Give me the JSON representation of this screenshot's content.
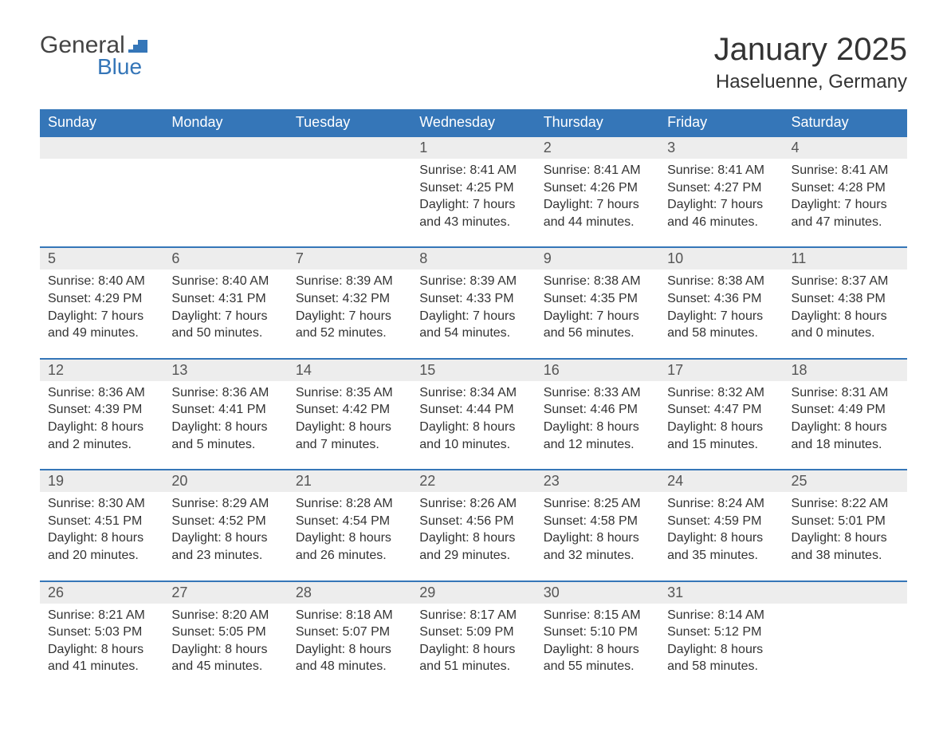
{
  "logo": {
    "general": "General",
    "blue": "Blue",
    "flag_color": "#3576b8"
  },
  "title": "January 2025",
  "location": "Haseluenne, Germany",
  "colors": {
    "header_bg": "#3576b8",
    "header_text": "#ffffff",
    "daynum_bg": "#ededed",
    "row_border": "#3576b8",
    "text": "#333333",
    "background": "#ffffff"
  },
  "day_names": [
    "Sunday",
    "Monday",
    "Tuesday",
    "Wednesday",
    "Thursday",
    "Friday",
    "Saturday"
  ],
  "weeks": [
    [
      null,
      null,
      null,
      {
        "n": "1",
        "sunrise": "8:41 AM",
        "sunset": "4:25 PM",
        "daylight": "7 hours and 43 minutes."
      },
      {
        "n": "2",
        "sunrise": "8:41 AM",
        "sunset": "4:26 PM",
        "daylight": "7 hours and 44 minutes."
      },
      {
        "n": "3",
        "sunrise": "8:41 AM",
        "sunset": "4:27 PM",
        "daylight": "7 hours and 46 minutes."
      },
      {
        "n": "4",
        "sunrise": "8:41 AM",
        "sunset": "4:28 PM",
        "daylight": "7 hours and 47 minutes."
      }
    ],
    [
      {
        "n": "5",
        "sunrise": "8:40 AM",
        "sunset": "4:29 PM",
        "daylight": "7 hours and 49 minutes."
      },
      {
        "n": "6",
        "sunrise": "8:40 AM",
        "sunset": "4:31 PM",
        "daylight": "7 hours and 50 minutes."
      },
      {
        "n": "7",
        "sunrise": "8:39 AM",
        "sunset": "4:32 PM",
        "daylight": "7 hours and 52 minutes."
      },
      {
        "n": "8",
        "sunrise": "8:39 AM",
        "sunset": "4:33 PM",
        "daylight": "7 hours and 54 minutes."
      },
      {
        "n": "9",
        "sunrise": "8:38 AM",
        "sunset": "4:35 PM",
        "daylight": "7 hours and 56 minutes."
      },
      {
        "n": "10",
        "sunrise": "8:38 AM",
        "sunset": "4:36 PM",
        "daylight": "7 hours and 58 minutes."
      },
      {
        "n": "11",
        "sunrise": "8:37 AM",
        "sunset": "4:38 PM",
        "daylight": "8 hours and 0 minutes."
      }
    ],
    [
      {
        "n": "12",
        "sunrise": "8:36 AM",
        "sunset": "4:39 PM",
        "daylight": "8 hours and 2 minutes."
      },
      {
        "n": "13",
        "sunrise": "8:36 AM",
        "sunset": "4:41 PM",
        "daylight": "8 hours and 5 minutes."
      },
      {
        "n": "14",
        "sunrise": "8:35 AM",
        "sunset": "4:42 PM",
        "daylight": "8 hours and 7 minutes."
      },
      {
        "n": "15",
        "sunrise": "8:34 AM",
        "sunset": "4:44 PM",
        "daylight": "8 hours and 10 minutes."
      },
      {
        "n": "16",
        "sunrise": "8:33 AM",
        "sunset": "4:46 PM",
        "daylight": "8 hours and 12 minutes."
      },
      {
        "n": "17",
        "sunrise": "8:32 AM",
        "sunset": "4:47 PM",
        "daylight": "8 hours and 15 minutes."
      },
      {
        "n": "18",
        "sunrise": "8:31 AM",
        "sunset": "4:49 PM",
        "daylight": "8 hours and 18 minutes."
      }
    ],
    [
      {
        "n": "19",
        "sunrise": "8:30 AM",
        "sunset": "4:51 PM",
        "daylight": "8 hours and 20 minutes."
      },
      {
        "n": "20",
        "sunrise": "8:29 AM",
        "sunset": "4:52 PM",
        "daylight": "8 hours and 23 minutes."
      },
      {
        "n": "21",
        "sunrise": "8:28 AM",
        "sunset": "4:54 PM",
        "daylight": "8 hours and 26 minutes."
      },
      {
        "n": "22",
        "sunrise": "8:26 AM",
        "sunset": "4:56 PM",
        "daylight": "8 hours and 29 minutes."
      },
      {
        "n": "23",
        "sunrise": "8:25 AM",
        "sunset": "4:58 PM",
        "daylight": "8 hours and 32 minutes."
      },
      {
        "n": "24",
        "sunrise": "8:24 AM",
        "sunset": "4:59 PM",
        "daylight": "8 hours and 35 minutes."
      },
      {
        "n": "25",
        "sunrise": "8:22 AM",
        "sunset": "5:01 PM",
        "daylight": "8 hours and 38 minutes."
      }
    ],
    [
      {
        "n": "26",
        "sunrise": "8:21 AM",
        "sunset": "5:03 PM",
        "daylight": "8 hours and 41 minutes."
      },
      {
        "n": "27",
        "sunrise": "8:20 AM",
        "sunset": "5:05 PM",
        "daylight": "8 hours and 45 minutes."
      },
      {
        "n": "28",
        "sunrise": "8:18 AM",
        "sunset": "5:07 PM",
        "daylight": "8 hours and 48 minutes."
      },
      {
        "n": "29",
        "sunrise": "8:17 AM",
        "sunset": "5:09 PM",
        "daylight": "8 hours and 51 minutes."
      },
      {
        "n": "30",
        "sunrise": "8:15 AM",
        "sunset": "5:10 PM",
        "daylight": "8 hours and 55 minutes."
      },
      {
        "n": "31",
        "sunrise": "8:14 AM",
        "sunset": "5:12 PM",
        "daylight": "8 hours and 58 minutes."
      },
      null
    ]
  ],
  "labels": {
    "sunrise": "Sunrise: ",
    "sunset": "Sunset: ",
    "daylight": "Daylight: "
  }
}
